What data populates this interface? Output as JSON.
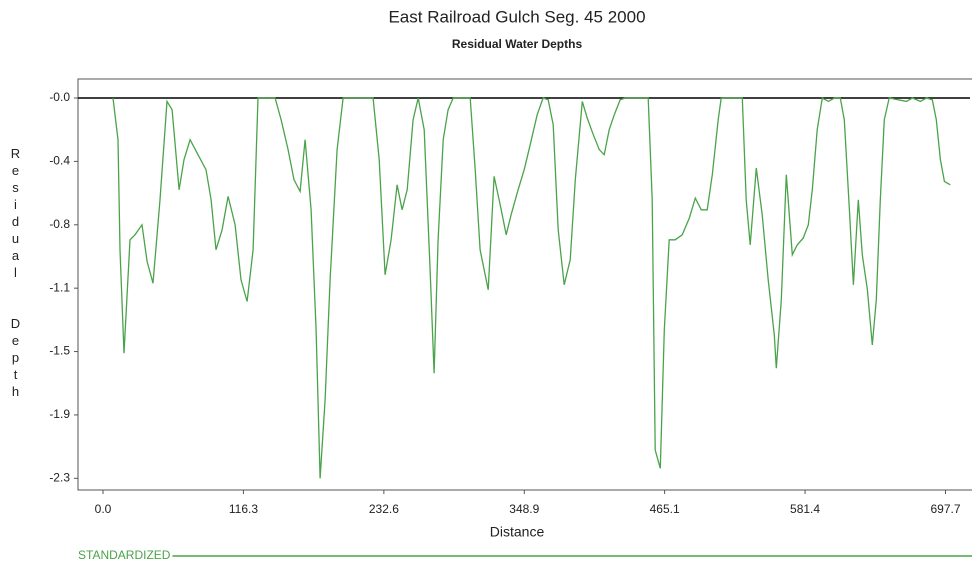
{
  "chart_data": {
    "type": "line",
    "title": "East Railroad Gulch Seg. 45  2000",
    "subtitle": "Residual Water Depths",
    "x_label": "Distance",
    "y_label": "Residual  Depth",
    "x": [
      8.3,
      12.4,
      14.1,
      17.4,
      22.4,
      26.5,
      32.3,
      36.5,
      41.4,
      47.2,
      53.0,
      57.2,
      63.0,
      67.1,
      72.1,
      78.7,
      85.3,
      89.5,
      93.6,
      98.6,
      103.6,
      109.4,
      114.3,
      119.3,
      124.3,
      128.4,
      142.5,
      147.5,
      153.3,
      158.2,
      163.2,
      167.4,
      172.3,
      176.5,
      179.8,
      183.9,
      188.1,
      193.9,
      198.8,
      223.7,
      228.7,
      233.6,
      238.6,
      243.6,
      247.7,
      251.9,
      256.8,
      261.0,
      266.0,
      270.9,
      274.2,
      277.5,
      281.7,
      285.8,
      290.0,
      304.1,
      308.2,
      312.3,
      319.0,
      323.9,
      328.9,
      333.9,
      338.0,
      343.8,
      348.8,
      353.8,
      359.6,
      364.5,
      368.7,
      372.8,
      377.0,
      381.9,
      386.9,
      391.1,
      396.9,
      401.0,
      406.0,
      411.0,
      415.1,
      419.2,
      423.4,
      428.3,
      432.5,
      451.5,
      454.8,
      457.3,
      461.5,
      464.8,
      468.9,
      473.9,
      479.7,
      485.5,
      490.5,
      495.4,
      500.4,
      504.6,
      509.5,
      512.0,
      529.4,
      532.7,
      536.0,
      541.0,
      545.9,
      550.9,
      555.9,
      557.6,
      561.7,
      565.9,
      570.8,
      575.0,
      579.9,
      584.1,
      587.4,
      591.5,
      595.7,
      600.7,
      605.6,
      610.6,
      613.9,
      618.1,
      621.4,
      625.5,
      628.8,
      633.0,
      637.1,
      640.4,
      643.7,
      647.0,
      651.1,
      665.3,
      670.3,
      676.9,
      681.9,
      686.8,
      690.1,
      693.5,
      696.8,
      701.7
    ],
    "series": [
      {
        "name": "STANDARDIZED",
        "color": "#4aa34a",
        "values": [
          0,
          -0.25,
          -0.91,
          -1.53,
          -0.85,
          -0.82,
          -0.76,
          -0.98,
          -1.11,
          -0.61,
          -0.02,
          -0.07,
          -0.55,
          -0.37,
          -0.25,
          -0.34,
          -0.43,
          -0.61,
          -0.91,
          -0.79,
          -0.59,
          -0.76,
          -1.09,
          -1.22,
          -0.91,
          0,
          0,
          -0.13,
          -0.31,
          -0.49,
          -0.56,
          -0.25,
          -0.67,
          -1.39,
          -2.28,
          -1.81,
          -1.09,
          -0.31,
          0,
          0,
          -0.37,
          -1.06,
          -0.85,
          -0.52,
          -0.67,
          -0.55,
          -0.13,
          0,
          -0.19,
          -1.03,
          -1.65,
          -0.85,
          -0.25,
          -0.07,
          0,
          0,
          -0.43,
          -0.91,
          -1.15,
          -0.47,
          -0.64,
          -0.82,
          -0.7,
          -0.55,
          -0.43,
          -0.28,
          -0.1,
          0,
          -0.01,
          -0.16,
          -0.79,
          -1.12,
          -0.97,
          -0.49,
          -0.02,
          -0.12,
          -0.22,
          -0.31,
          -0.34,
          -0.19,
          -0.1,
          -0.01,
          0,
          0,
          -0.61,
          -2.11,
          -2.22,
          -1.39,
          -0.85,
          -0.85,
          -0.82,
          -0.72,
          -0.6,
          -0.67,
          -0.67,
          -0.46,
          -0.13,
          0,
          0,
          -0.61,
          -0.88,
          -0.42,
          -0.7,
          -1.09,
          -1.42,
          -1.62,
          -1.21,
          -0.46,
          -0.94,
          -0.88,
          -0.84,
          -0.76,
          -0.55,
          -0.19,
          0,
          -0.02,
          0,
          0,
          -0.13,
          -0.67,
          -1.12,
          -0.61,
          -0.94,
          -1.15,
          -1.48,
          -1.21,
          -0.61,
          -0.13,
          0,
          -0.02,
          0,
          -0.02,
          0,
          -0.01,
          -0.13,
          -0.37,
          -0.5,
          -0.52
        ]
      }
    ],
    "xlim": [
      -20.7,
      718
    ],
    "ylim": [
      -2.35,
      0.114
    ],
    "xticks": [
      {
        "value": 0,
        "label": "0.0"
      },
      116.3,
      232.6,
      348.9,
      465.1,
      581.4,
      697.7
    ],
    "yticks": [
      {
        "value": 0,
        "label": "-0.0"
      },
      {
        "value": -0.38,
        "label": "-0.4"
      },
      {
        "value": -0.76,
        "label": "-0.8"
      },
      {
        "value": -1.14,
        "label": "-1.1"
      },
      {
        "value": -1.52,
        "label": "-1.5"
      },
      {
        "value": -1.9,
        "label": "-1.9"
      },
      {
        "value": -2.28,
        "label": "-2.3"
      }
    ],
    "grid": false
  }
}
